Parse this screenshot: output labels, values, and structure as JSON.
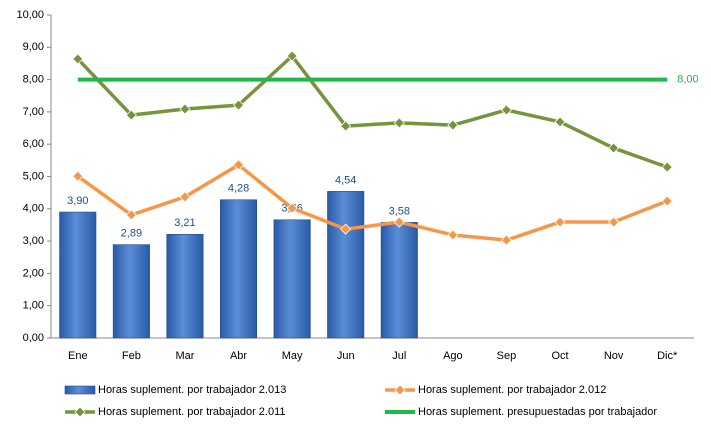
{
  "chart_data": {
    "type": "bar",
    "categories": [
      "Ene",
      "Feb",
      "Mar",
      "Abr",
      "May",
      "Jun",
      "Jul",
      "Ago",
      "Sep",
      "Oct",
      "Nov",
      "Dic*"
    ],
    "ylim": [
      0,
      10
    ],
    "yticks": [
      {
        "value": 0,
        "label": "0,00"
      },
      {
        "value": 1,
        "label": "1,00"
      },
      {
        "value": 2,
        "label": "2,00"
      },
      {
        "value": 3,
        "label": "3,00"
      },
      {
        "value": 4,
        "label": "4,00"
      },
      {
        "value": 5,
        "label": "5,00"
      },
      {
        "value": 6,
        "label": "6,00"
      },
      {
        "value": 7,
        "label": "7,00"
      },
      {
        "value": 8,
        "label": "8,00"
      },
      {
        "value": 9,
        "label": "9,00"
      },
      {
        "value": 10,
        "label": "10,00"
      }
    ],
    "grid": false,
    "legend": "bottom",
    "series": [
      {
        "name": "Horas suplement. por trabajador 2.013",
        "type": "bar",
        "color": "#3f72c0",
        "values": [
          3.9,
          2.89,
          3.21,
          4.28,
          3.66,
          4.54,
          3.58,
          null,
          null,
          null,
          null,
          null
        ],
        "value_labels": [
          "3,90",
          "2,89",
          "3,21",
          "4,28",
          "3,66",
          "4,54",
          "3,58",
          null,
          null,
          null,
          null,
          null
        ]
      },
      {
        "name": "Horas suplement. por trabajador 2.012",
        "type": "line",
        "marker": "diamond",
        "color": "#f79646",
        "values": [
          5.01,
          3.81,
          4.37,
          5.36,
          4.02,
          3.37,
          3.59,
          3.19,
          3.03,
          3.59,
          3.59,
          4.24
        ]
      },
      {
        "name": "Horas suplement. por trabajador 2.011",
        "type": "line",
        "marker": "diamond",
        "color": "#77933c",
        "values": [
          8.64,
          6.9,
          7.09,
          7.21,
          8.73,
          6.56,
          6.66,
          6.59,
          7.06,
          6.69,
          5.88,
          5.29
        ]
      },
      {
        "name": "Horas suplement. presupuestadas por trabajador",
        "type": "line",
        "marker": "none",
        "color": "#1fb84a",
        "values": [
          8,
          8,
          8,
          8,
          8,
          8,
          8,
          8,
          8,
          8,
          8,
          8
        ],
        "value_labels": [
          null,
          null,
          null,
          null,
          null,
          null,
          null,
          null,
          null,
          null,
          null,
          "8,00"
        ]
      }
    ]
  }
}
